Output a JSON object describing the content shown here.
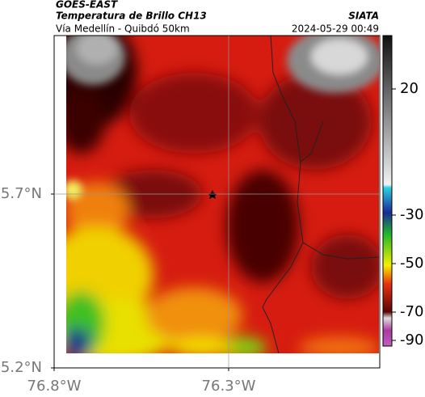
{
  "header": {
    "satellite": "GOES-EAST",
    "product": "Temperatura de Brillo CH13",
    "source": "SIATA",
    "route": "Vía Medellín - Quibdó 50km",
    "timestamp": "2024-05-29 00:49"
  },
  "map": {
    "lat_ticks": [
      {
        "value": 5.7,
        "label": "5.7°N"
      },
      {
        "value": 5.2,
        "label": "5.2°N"
      }
    ],
    "lon_ticks": [
      {
        "value": -76.8,
        "label": "76.8°W"
      },
      {
        "value": -76.3,
        "label": "76.3°W"
      }
    ]
  },
  "colorbar": {
    "ticks": [
      20,
      -30,
      -50,
      -70,
      -90
    ]
  }
}
